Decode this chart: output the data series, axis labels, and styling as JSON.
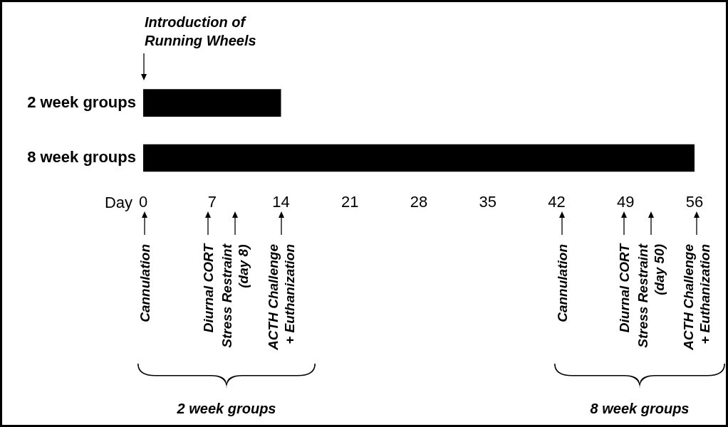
{
  "chart_data": {
    "type": "bar",
    "orientation": "horizontal",
    "categories": [
      "2 week groups",
      "8 week groups"
    ],
    "base": [
      0,
      0
    ],
    "values": [
      14,
      56
    ],
    "color": "#000000",
    "xlim": [
      0,
      56
    ],
    "xticks": [
      0,
      7,
      14,
      21,
      28,
      35,
      42,
      49,
      56
    ],
    "xlabel": "Day",
    "grid": false,
    "legend": false,
    "annotations": [
      "Introduction of\nRunning Wheels",
      "Cannulation",
      "Diurnal CORT",
      "Stress Restraint\n(day 8)",
      "ACTH Challenge\n+ Euthanization",
      "Cannulation",
      "Diurnal CORT",
      "Stress Restraint\n(day 50)",
      "ACTH Challenge\n+ Euthanization",
      "2 week groups",
      "8 week groups"
    ]
  }
}
